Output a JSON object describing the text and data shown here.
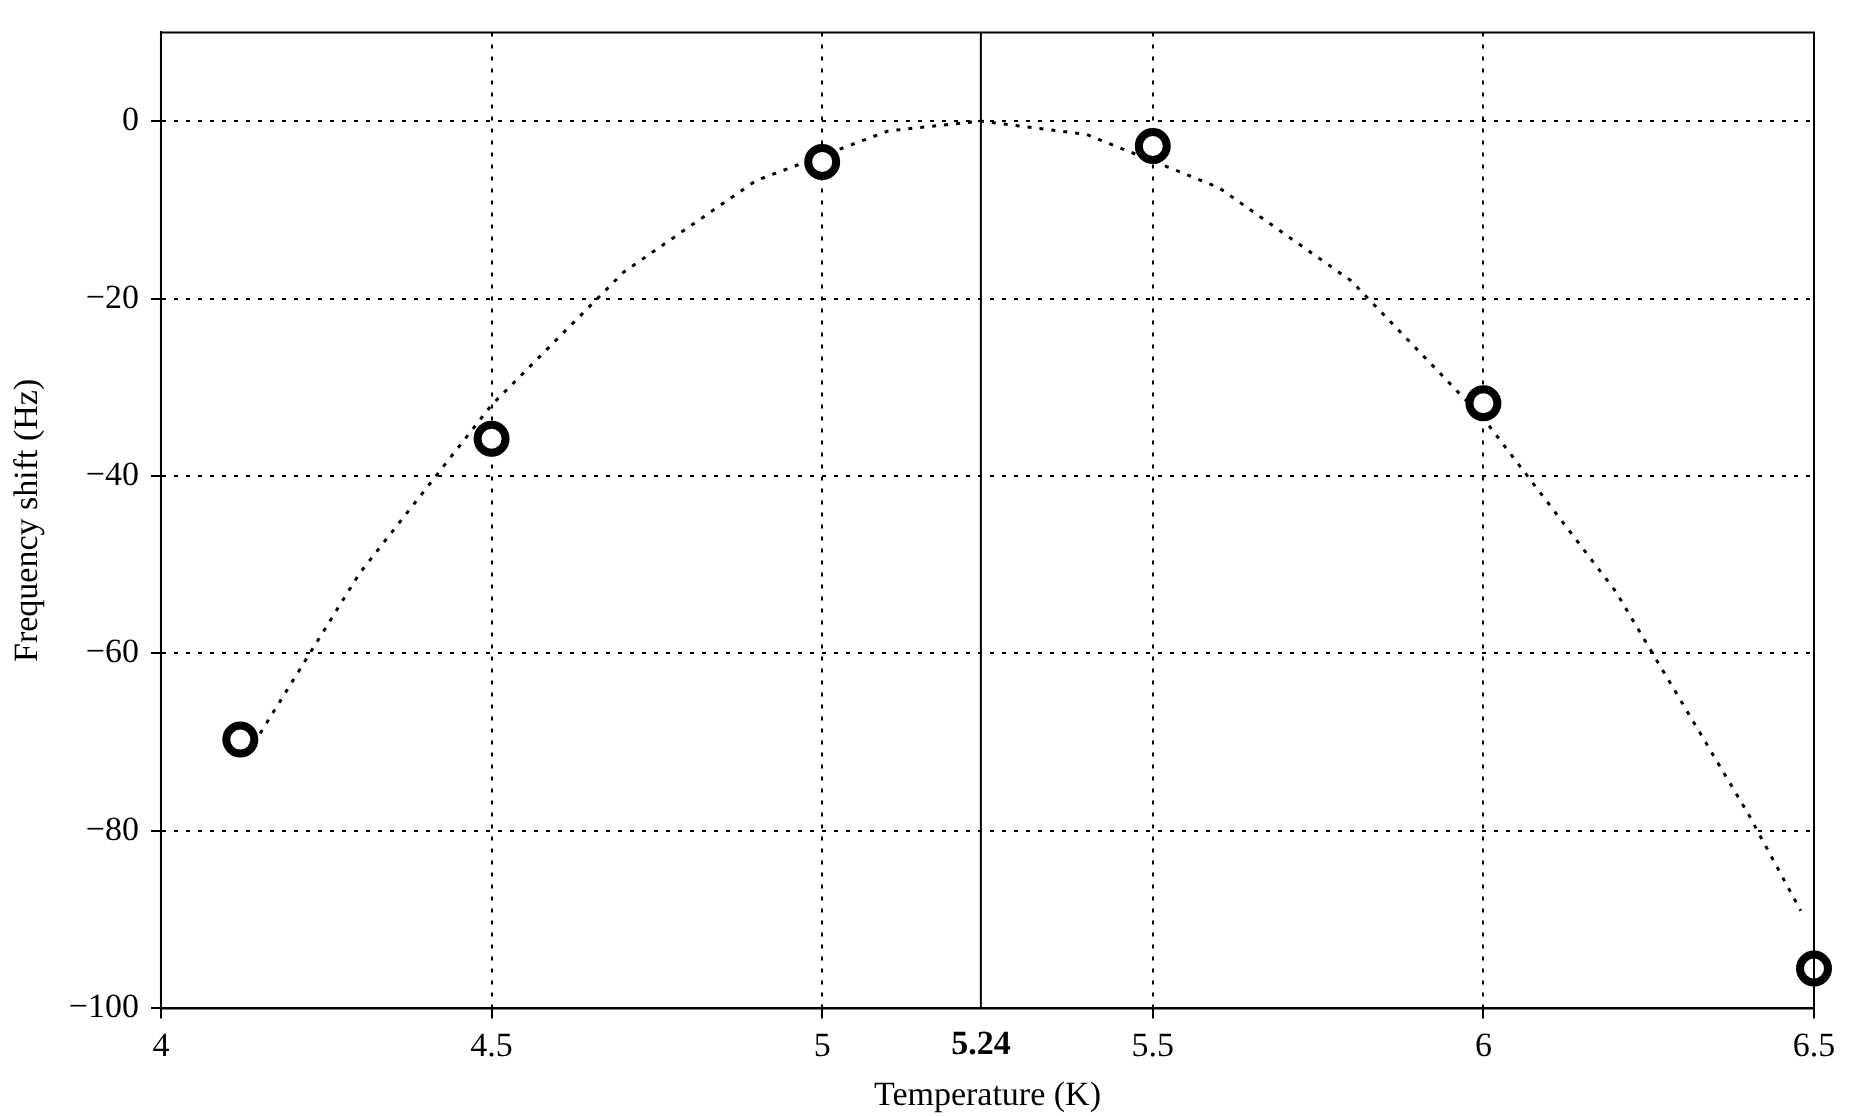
{
  "chart_data": {
    "type": "scatter",
    "xlabel": "Temperature (K)",
    "ylabel": "Frequency shift (Hz)",
    "xlim": [
      4,
      6.5
    ],
    "xticks": [
      4,
      4.5,
      5,
      5.5,
      6,
      6.5
    ],
    "ylim": [
      -100,
      10
    ],
    "yticks": [
      -100,
      -80,
      -60,
      -40,
      -20,
      0
    ],
    "grid": true,
    "series": [
      {
        "x": [
          4.12,
          4.5,
          5,
          5.5,
          6,
          6.5
        ],
        "values": [
          -69.7,
          -35.8,
          -4.6,
          -2.8,
          -31.8,
          -95.5
        ],
        "color": "#000000",
        "marker": "circle"
      },
      {
        "type": "line",
        "x": [
          4.15,
          4.3,
          4.5,
          4.7,
          4.9,
          5.1,
          5.24,
          5.4,
          5.6,
          5.8,
          6.0,
          6.2,
          6.4,
          6.48
        ],
        "values": [
          -69,
          -51,
          -32,
          -17,
          -6.7,
          -1.1,
          0,
          -1.5,
          -7.5,
          -18,
          -33.5,
          -53,
          -78,
          -89
        ],
        "color": "#000000",
        "line_style": "dotted",
        "marker": "none"
      }
    ],
    "ref_lines": [
      {
        "axis": "x",
        "value": 5.24,
        "label": "5.24",
        "color": "#000000"
      }
    ]
  }
}
